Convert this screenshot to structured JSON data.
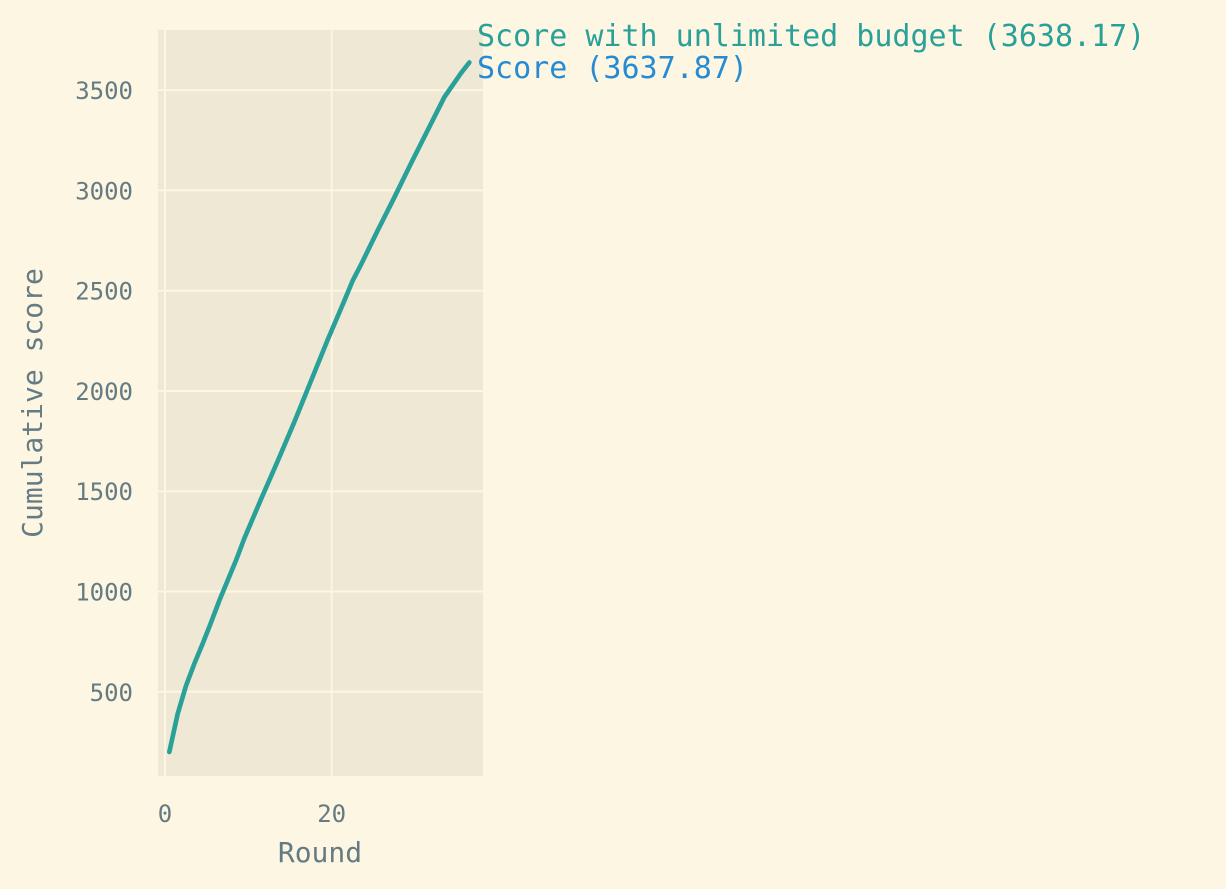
{
  "chart_data": {
    "type": "line",
    "xlabel": "Round",
    "ylabel": "Cumulative score",
    "xlim": [
      0,
      39
    ],
    "ylim": [
      80,
      3800
    ],
    "xticks": [
      0,
      20
    ],
    "yticks": [
      500,
      1000,
      1500,
      2000,
      2500,
      3000,
      3500
    ],
    "grid": true,
    "colors": {
      "background": "#fdf6e3",
      "plot_bg": "#eee8d5",
      "grid": "#fdf6e3",
      "text": "#657b83"
    },
    "series": [
      {
        "name": "Score with unlimited budget (3638.17)",
        "color": "#2aa198",
        "x": [
          1,
          2,
          3,
          4,
          5,
          6,
          7,
          8,
          9,
          10,
          12,
          14,
          16,
          18,
          20,
          22,
          23,
          24,
          26,
          28,
          30,
          32,
          34,
          36,
          37
        ],
        "y": [
          200,
          390,
          530,
          640,
          740,
          845,
          955,
          1055,
          1155,
          1265,
          1460,
          1650,
          1845,
          2050,
          2255,
          2450,
          2550,
          2630,
          2800,
          2965,
          3135,
          3300,
          3465,
          3585,
          3638.17
        ]
      },
      {
        "name": "Score (3637.87)",
        "color": "#268bd2",
        "x": [
          1,
          2,
          3,
          4,
          5,
          6,
          7,
          8,
          9,
          10,
          12,
          14,
          16,
          18,
          20,
          22,
          23,
          24,
          26,
          28,
          30,
          32,
          34,
          36,
          37
        ],
        "y": [
          200,
          390,
          530,
          640,
          740,
          845,
          955,
          1055,
          1155,
          1265,
          1460,
          1650,
          1845,
          2050,
          2255,
          2450,
          2550,
          2630,
          2800,
          2965,
          3135,
          3300,
          3465,
          3585,
          3637.87
        ]
      }
    ]
  }
}
